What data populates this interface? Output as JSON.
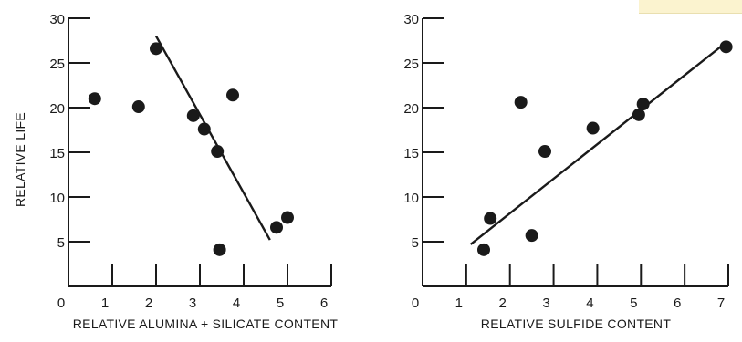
{
  "chart_data": [
    {
      "type": "scatter",
      "xlabel": "RELATIVE ALUMINA + SILICATE CONTENT",
      "ylabel": "RELATIVE LIFE",
      "xlim": [
        0,
        6
      ],
      "ylim": [
        0,
        30
      ],
      "x_ticks": [
        "0",
        "1",
        "2",
        "3",
        "4",
        "5",
        "6"
      ],
      "y_ticks": [
        "5",
        "10",
        "15",
        "20",
        "25",
        "30"
      ],
      "points": [
        {
          "x": 0.6,
          "y": 21.0
        },
        {
          "x": 1.6,
          "y": 20.1
        },
        {
          "x": 2.0,
          "y": 26.6
        },
        {
          "x": 2.85,
          "y": 19.1
        },
        {
          "x": 3.1,
          "y": 17.6
        },
        {
          "x": 3.4,
          "y": 15.1
        },
        {
          "x": 3.45,
          "y": 4.1
        },
        {
          "x": 3.75,
          "y": 21.4
        },
        {
          "x": 4.75,
          "y": 6.6
        },
        {
          "x": 5.0,
          "y": 7.7
        }
      ],
      "fit_line": {
        "x1": 2.0,
        "y1": 28.0,
        "x2": 4.6,
        "y2": 5.2
      }
    },
    {
      "type": "scatter",
      "xlabel": "RELATIVE SULFIDE CONTENT",
      "ylabel": "",
      "xlim": [
        0,
        7
      ],
      "ylim": [
        0,
        30
      ],
      "x_ticks": [
        "0",
        "1",
        "2",
        "3",
        "4",
        "5",
        "6",
        "7"
      ],
      "y_ticks": [
        "5",
        "10",
        "15",
        "20",
        "25",
        "30"
      ],
      "points": [
        {
          "x": 1.4,
          "y": 4.1
        },
        {
          "x": 1.55,
          "y": 7.6
        },
        {
          "x": 2.25,
          "y": 20.6
        },
        {
          "x": 2.5,
          "y": 5.7
        },
        {
          "x": 2.8,
          "y": 15.1
        },
        {
          "x": 3.9,
          "y": 17.7
        },
        {
          "x": 4.95,
          "y": 19.2
        },
        {
          "x": 5.05,
          "y": 20.4
        },
        {
          "x": 6.95,
          "y": 26.8
        }
      ],
      "fit_line": {
        "x1": 1.1,
        "y1": 4.7,
        "x2": 6.9,
        "y2": 27.1
      }
    }
  ]
}
